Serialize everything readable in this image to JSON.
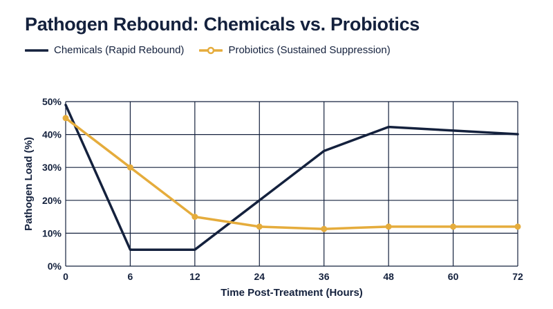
{
  "chart_data": {
    "type": "line",
    "title": "Pathogen Rebound: Chemicals vs. Probiotics",
    "xlabel": "Time Post-Treatment (Hours)",
    "ylabel": "Pathogen Load (%)",
    "x": [
      0,
      6,
      12,
      24,
      36,
      48,
      60,
      72
    ],
    "xticks": [
      "0",
      "6",
      "12",
      "24",
      "36",
      "48",
      "60",
      "72"
    ],
    "yticks": [
      "0%",
      "10%",
      "20%",
      "30%",
      "40%",
      "50%"
    ],
    "ylim": [
      0,
      50
    ],
    "grid": true,
    "legend_position": "top-left",
    "series": [
      {
        "name": "Chemicals (Rapid Rebound)",
        "color": "#14213d",
        "marker": "none",
        "values": [
          49,
          5,
          5,
          20,
          35,
          42.3,
          41.2,
          40.1
        ]
      },
      {
        "name": "Probiotics (Sustained Suppression)",
        "color": "#e5ac3c",
        "marker": "circle",
        "values": [
          45,
          30,
          15,
          12,
          11.3,
          12,
          12,
          12
        ]
      }
    ]
  }
}
